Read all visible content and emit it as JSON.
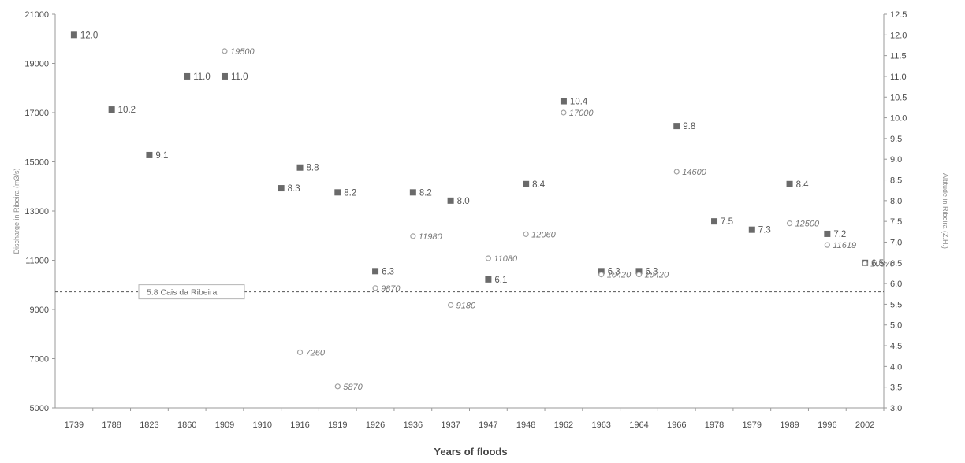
{
  "chart_data": {
    "type": "scatter",
    "xlabel": "Years of floods",
    "y_left_label": "Discharge in Ribeira (m3/s)",
    "y_right_label": "Altitude in Ribeira (Z.H.)",
    "categories": [
      "1739",
      "1788",
      "1823",
      "1860",
      "1909",
      "1910",
      "1916",
      "1919",
      "1926",
      "1936",
      "1937",
      "1947",
      "1948",
      "1962",
      "1963",
      "1964",
      "1966",
      "1978",
      "1979",
      "1989",
      "1996",
      "2002"
    ],
    "y_left_lim": [
      5000,
      21000
    ],
    "y_left_ticks": [
      5000,
      7000,
      9000,
      11000,
      13000,
      15000,
      17000,
      19000,
      21000
    ],
    "y_right_lim": [
      3.0,
      12.5
    ],
    "y_right_ticks": [
      "3.0",
      "3.5",
      "4.0",
      "4.5",
      "5.0",
      "5.5",
      "6.0",
      "6.5",
      "7.0",
      "7.5",
      "8.0",
      "8.5",
      "9.0",
      "9.5",
      "10.0",
      "10.5",
      "11.0",
      "11.5",
      "12.0",
      "12.5"
    ],
    "series": [
      {
        "axis": "right",
        "marker": "square",
        "color": "#6a6a6a",
        "points": [
          {
            "cat": 0,
            "x_offset": 0,
            "value": 12.0,
            "label": "12.0"
          },
          {
            "cat": 1,
            "x_offset": 0,
            "value": 10.2,
            "label": "10.2"
          },
          {
            "cat": 2,
            "x_offset": 0,
            "value": 9.1,
            "label": "9.1"
          },
          {
            "cat": 3,
            "x_offset": 0,
            "value": 11.0,
            "label": "11.0"
          },
          {
            "cat": 4,
            "x_offset": 0,
            "value": 11.0,
            "label": "11.0"
          },
          {
            "cat": 5,
            "x_offset": 0.5,
            "value": 8.3,
            "label": "8.3"
          },
          {
            "cat": 6,
            "x_offset": 0,
            "value": 8.8,
            "label": "8.8"
          },
          {
            "cat": 7,
            "x_offset": 0,
            "value": 8.2,
            "label": "8.2"
          },
          {
            "cat": 8,
            "x_offset": 0,
            "value": 6.3,
            "label": "6.3"
          },
          {
            "cat": 9,
            "x_offset": 0,
            "value": 8.2,
            "label": "8.2"
          },
          {
            "cat": 10,
            "x_offset": 0,
            "value": 8.0,
            "label": "8.0"
          },
          {
            "cat": 11,
            "x_offset": 0,
            "value": 6.1,
            "label": "6.1"
          },
          {
            "cat": 12,
            "x_offset": 0,
            "value": 8.4,
            "label": "8.4"
          },
          {
            "cat": 13,
            "x_offset": 0,
            "value": 10.4,
            "label": "10.4"
          },
          {
            "cat": 14,
            "x_offset": 0,
            "value": 6.3,
            "label": "6.3"
          },
          {
            "cat": 15,
            "x_offset": 0,
            "value": 6.3,
            "label": "6.3"
          },
          {
            "cat": 16,
            "x_offset": 0,
            "value": 9.8,
            "label": "9.8"
          },
          {
            "cat": 17,
            "x_offset": 0,
            "value": 7.5,
            "label": "7.5"
          },
          {
            "cat": 18,
            "x_offset": 0,
            "value": 7.3,
            "label": "7.3"
          },
          {
            "cat": 19,
            "x_offset": 0,
            "value": 8.4,
            "label": "8.4"
          },
          {
            "cat": 20,
            "x_offset": 0,
            "value": 7.2,
            "label": "7.2"
          },
          {
            "cat": 21,
            "x_offset": 0,
            "value": 6.5,
            "label": "6.5"
          }
        ]
      },
      {
        "axis": "left",
        "marker": "circle",
        "color": "#a0a0a0",
        "points": [
          {
            "cat": 4,
            "x_offset": 0,
            "value": 19500,
            "label": "19500"
          },
          {
            "cat": 6,
            "x_offset": 0,
            "value": 7260,
            "label": "7260"
          },
          {
            "cat": 7,
            "x_offset": 0,
            "value": 5870,
            "label": "5870"
          },
          {
            "cat": 8,
            "x_offset": 0,
            "value": 9870,
            "label": "9870"
          },
          {
            "cat": 9,
            "x_offset": 0,
            "value": 11980,
            "label": "11980"
          },
          {
            "cat": 10,
            "x_offset": 0,
            "value": 9180,
            "label": "9180"
          },
          {
            "cat": 11,
            "x_offset": 0,
            "value": 11080,
            "label": "11080"
          },
          {
            "cat": 12,
            "x_offset": 0,
            "value": 12060,
            "label": "12060"
          },
          {
            "cat": 13,
            "x_offset": 0,
            "value": 17000,
            "label": "17000"
          },
          {
            "cat": 14,
            "x_offset": 0,
            "value": 10420,
            "label": "10420"
          },
          {
            "cat": 15,
            "x_offset": 0,
            "value": 10420,
            "label": "10420"
          },
          {
            "cat": 16,
            "x_offset": 0,
            "value": 14600,
            "label": "14600"
          },
          {
            "cat": 19,
            "x_offset": 0,
            "value": 12500,
            "label": "12500"
          },
          {
            "cat": 20,
            "x_offset": 0,
            "value": 11619,
            "label": "11619"
          },
          {
            "cat": 21,
            "x_offset": 0,
            "value": 10870,
            "label": "10870"
          }
        ]
      }
    ],
    "reference_line": {
      "axis": "right",
      "value": 5.8,
      "label": "5.8  Cais da Ribeira"
    },
    "grid": false
  }
}
